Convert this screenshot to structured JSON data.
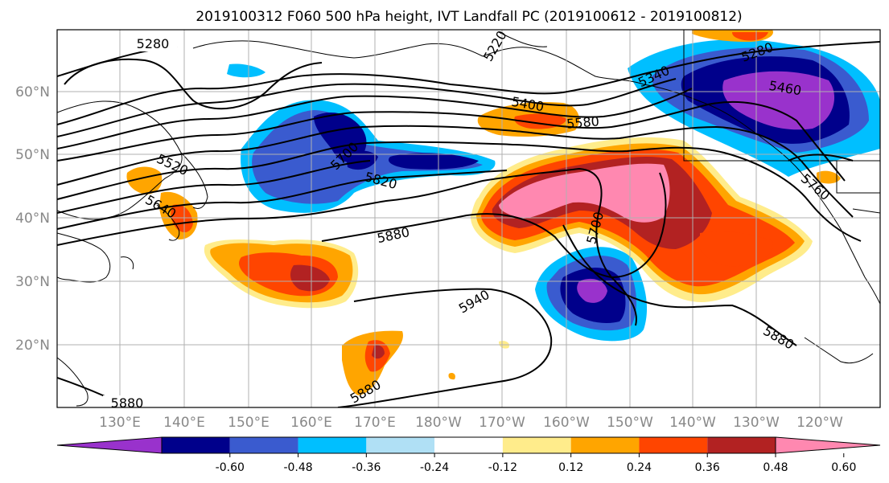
{
  "title": "2019100312 F060 500 hPa height, IVT Landfall PC (2019100612 - 2019100812)",
  "lat_labels": [
    "60°N",
    "50°N",
    "40°N",
    "30°N",
    "20°N"
  ],
  "lon_labels": [
    "130°E",
    "140°E",
    "150°E",
    "160°E",
    "170°E",
    "180°W",
    "170°W",
    "160°W",
    "150°W",
    "140°W",
    "130°W",
    "120°W"
  ],
  "contour_labels": [
    "5280",
    "5220",
    "5280",
    "5340",
    "5460",
    "5400",
    "5580",
    "5520",
    "5640",
    "5700",
    "5820",
    "5760",
    "5880",
    "5700",
    "5940",
    "5880",
    "5880",
    "5880"
  ],
  "colorbar": {
    "colors": [
      "#9932CC",
      "#00008B",
      "#3A5BCF",
      "#00BFFF",
      "#B0E0F5",
      "#FFFFFF",
      "#FFEC8B",
      "#FFA500",
      "#FF4500",
      "#B22222",
      "#FF88B0"
    ],
    "tick_labels": [
      "-0.60",
      "-0.48",
      "-0.36",
      "-0.24",
      "-0.12",
      "0.12",
      "0.24",
      "0.36",
      "0.48",
      "0.60"
    ]
  },
  "palette": {
    "purple": "#9932CC",
    "navy": "#00008B",
    "blue": "#3A5BCF",
    "sky": "#00BFFF",
    "pale": "#B0E0F5",
    "yellow": "#FFEC8B",
    "orange": "#FFA500",
    "red": "#FF4500",
    "darkred": "#B22222",
    "pink": "#FF88B0"
  }
}
